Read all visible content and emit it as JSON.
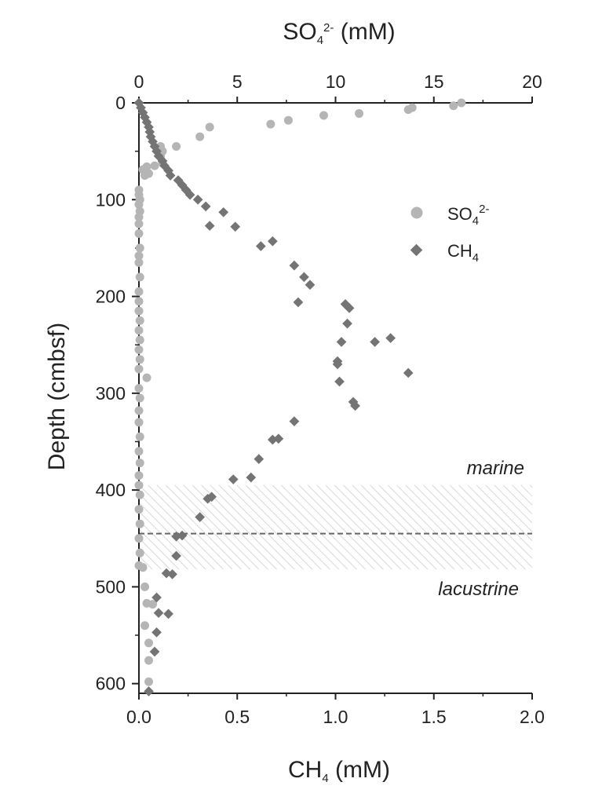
{
  "chart_data": {
    "type": "scatter",
    "top_axis": {
      "label_base": "SO",
      "label_sub": "4",
      "label_sup": "2-",
      "label_unit": " (mM)",
      "range": [
        0,
        20
      ],
      "ticks": [
        "0",
        "5",
        "10",
        "15",
        "20"
      ]
    },
    "bottom_axis": {
      "label_base": "CH",
      "label_sub": "4",
      "label_unit": " (mM)",
      "range": [
        0,
        2
      ],
      "ticks": [
        "0.0",
        "0.5",
        "1.0",
        "1.5",
        "2.0"
      ]
    },
    "y_axis": {
      "label": "Depth (cmbsf)",
      "range": [
        0,
        610
      ],
      "inverted": true,
      "ticks": [
        "0",
        "100",
        "200",
        "300",
        "400",
        "500",
        "600"
      ]
    },
    "legend": {
      "position": "top-right",
      "so4": {
        "base": "SO",
        "sub": "4",
        "sup": "2-"
      },
      "ch4": {
        "base": "CH",
        "sub": "4"
      }
    },
    "zone": {
      "top_depth": 395,
      "bottom_depth": 482,
      "boundary_depth": 445,
      "upper_label": "marine",
      "lower_label": "lacustrine"
    },
    "colors": {
      "so4": "#b5b5b5",
      "ch4": "#747474",
      "axis": "#222222",
      "hatch": "#d8d8d8",
      "boundary": "#666666"
    },
    "series": [
      {
        "name": "SO4 2-",
        "axis": "top",
        "marker": "circle",
        "points": [
          [
            16.4,
            0
          ],
          [
            16.0,
            3
          ],
          [
            13.9,
            5
          ],
          [
            13.7,
            7
          ],
          [
            11.2,
            11
          ],
          [
            9.4,
            13
          ],
          [
            7.6,
            18
          ],
          [
            6.7,
            22
          ],
          [
            3.6,
            25
          ],
          [
            3.1,
            35
          ],
          [
            1.9,
            45
          ],
          [
            1.1,
            45
          ],
          [
            1.2,
            50
          ],
          [
            1.1,
            55
          ],
          [
            1.2,
            62
          ],
          [
            0.8,
            65
          ],
          [
            0.4,
            66
          ],
          [
            0.2,
            69
          ],
          [
            0.5,
            73
          ],
          [
            0.3,
            75
          ],
          [
            0.0,
            90
          ],
          [
            0.0,
            95
          ],
          [
            0.05,
            100
          ],
          [
            0.0,
            105
          ],
          [
            0.05,
            112
          ],
          [
            0.0,
            118
          ],
          [
            0.0,
            125
          ],
          [
            0.0,
            135
          ],
          [
            0.05,
            150
          ],
          [
            0.0,
            158
          ],
          [
            0.0,
            165
          ],
          [
            0.05,
            180
          ],
          [
            0.0,
            195
          ],
          [
            0.0,
            205
          ],
          [
            0.0,
            215
          ],
          [
            0.05,
            225
          ],
          [
            0.0,
            235
          ],
          [
            0.05,
            245
          ],
          [
            0.0,
            255
          ],
          [
            0.05,
            265
          ],
          [
            0.0,
            275
          ],
          [
            0.4,
            284
          ],
          [
            0.0,
            295
          ],
          [
            0.05,
            305
          ],
          [
            0.0,
            318
          ],
          [
            0.0,
            330
          ],
          [
            0.05,
            345
          ],
          [
            0.0,
            360
          ],
          [
            0.05,
            372
          ],
          [
            0.0,
            385
          ],
          [
            0.0,
            395
          ],
          [
            0.05,
            405
          ],
          [
            0.0,
            420
          ],
          [
            0.05,
            435
          ],
          [
            0.0,
            450
          ],
          [
            0.05,
            465
          ],
          [
            0.0,
            478
          ],
          [
            0.2,
            480
          ],
          [
            0.3,
            500
          ],
          [
            0.4,
            517
          ],
          [
            0.7,
            518
          ],
          [
            0.3,
            540
          ],
          [
            0.5,
            558
          ],
          [
            0.5,
            576
          ],
          [
            0.5,
            598
          ]
        ]
      },
      {
        "name": "CH4",
        "axis": "bottom",
        "marker": "diamond",
        "points": [
          [
            0.0,
            0
          ],
          [
            0.01,
            5
          ],
          [
            0.02,
            10
          ],
          [
            0.03,
            15
          ],
          [
            0.04,
            20
          ],
          [
            0.05,
            25
          ],
          [
            0.055,
            30
          ],
          [
            0.06,
            35
          ],
          [
            0.07,
            40
          ],
          [
            0.08,
            45
          ],
          [
            0.09,
            50
          ],
          [
            0.1,
            55
          ],
          [
            0.12,
            60
          ],
          [
            0.13,
            65
          ],
          [
            0.15,
            70
          ],
          [
            0.16,
            75
          ],
          [
            0.2,
            80
          ],
          [
            0.22,
            85
          ],
          [
            0.24,
            90
          ],
          [
            0.26,
            95
          ],
          [
            0.3,
            100
          ],
          [
            0.34,
            107
          ],
          [
            0.43,
            113
          ],
          [
            0.36,
            127
          ],
          [
            0.49,
            128
          ],
          [
            0.68,
            143
          ],
          [
            0.62,
            148
          ],
          [
            0.79,
            168
          ],
          [
            0.84,
            180
          ],
          [
            0.87,
            188
          ],
          [
            0.81,
            206
          ],
          [
            1.05,
            208
          ],
          [
            1.07,
            212
          ],
          [
            1.06,
            228
          ],
          [
            1.28,
            243
          ],
          [
            1.2,
            247
          ],
          [
            1.03,
            247
          ],
          [
            1.01,
            267
          ],
          [
            1.01,
            270
          ],
          [
            1.37,
            279
          ],
          [
            1.02,
            288
          ],
          [
            1.09,
            309
          ],
          [
            1.1,
            313
          ],
          [
            0.79,
            329
          ],
          [
            0.71,
            347
          ],
          [
            0.68,
            348
          ],
          [
            0.61,
            368
          ],
          [
            0.57,
            387
          ],
          [
            0.48,
            389
          ],
          [
            0.37,
            407
          ],
          [
            0.35,
            409
          ],
          [
            0.31,
            428
          ],
          [
            0.22,
            447
          ],
          [
            0.19,
            448
          ],
          [
            0.19,
            468
          ],
          [
            0.14,
            486
          ],
          [
            0.17,
            487
          ],
          [
            0.09,
            511
          ],
          [
            0.15,
            528
          ],
          [
            0.1,
            527
          ],
          [
            0.09,
            547
          ],
          [
            0.08,
            567
          ],
          [
            0.05,
            608
          ]
        ]
      }
    ]
  }
}
